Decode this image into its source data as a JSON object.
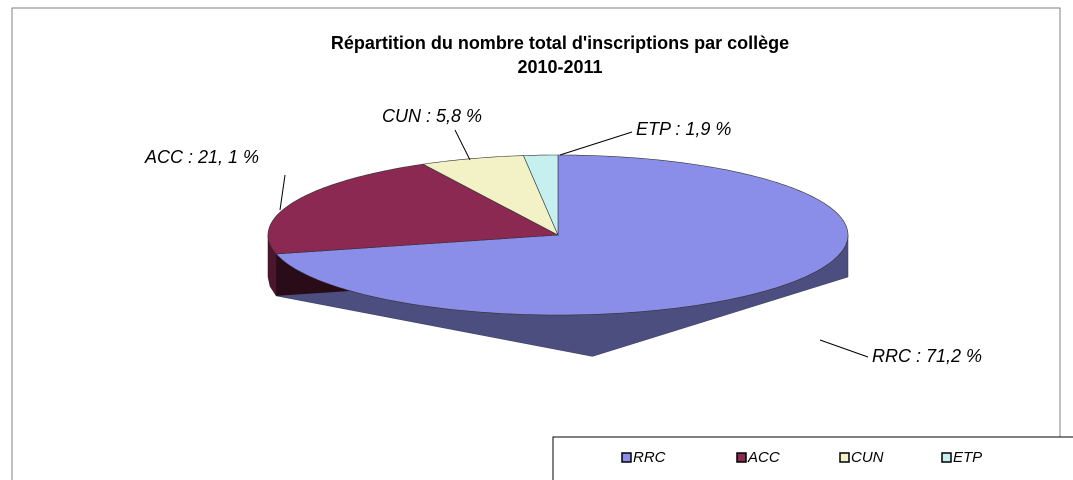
{
  "chart_data": {
    "type": "pie",
    "title": "Répartition du nombre total d'inscriptions par collège",
    "subtitle": "2010-2011",
    "categories": [
      "RRC",
      "ACC",
      "CUN",
      "ETP"
    ],
    "values": [
      71.2,
      21.1,
      5.8,
      1.9
    ],
    "value_labels": [
      "RRC : 71,2 %",
      "ACC : 21, 1 %",
      "CUN : 5,8 %",
      "ETP : 1,9 %"
    ],
    "colors": [
      "#8b8ee8",
      "#8b2952",
      "#f2f2c6",
      "#c6f0f0"
    ],
    "legend": "bottom-right"
  }
}
